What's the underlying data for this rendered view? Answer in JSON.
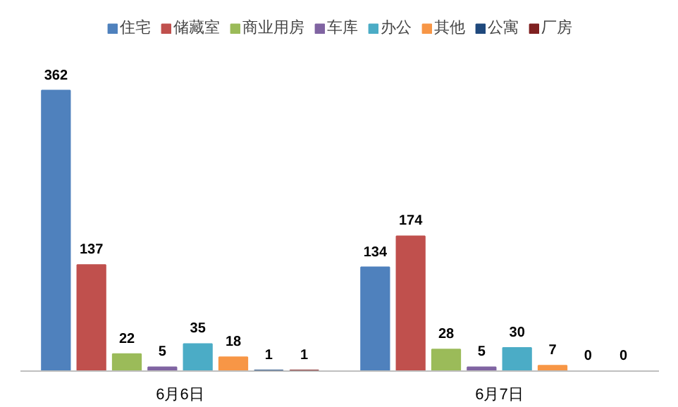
{
  "chart_data": {
    "type": "bar",
    "categories": [
      "6月6日",
      "6月7日"
    ],
    "series": [
      {
        "name": "住宅",
        "color": "#4f81bd",
        "values": [
          362,
          134
        ]
      },
      {
        "name": "储藏室",
        "color": "#c0504d",
        "values": [
          137,
          174
        ]
      },
      {
        "name": "商业用房",
        "color": "#9bbb59",
        "values": [
          22,
          28
        ]
      },
      {
        "name": "车库",
        "color": "#8064a2",
        "values": [
          5,
          5
        ]
      },
      {
        "name": "办公",
        "color": "#4bacc6",
        "values": [
          35,
          30
        ]
      },
      {
        "name": "其他",
        "color": "#f79646",
        "values": [
          18,
          7
        ]
      },
      {
        "name": "公寓",
        "color": "#1f497d",
        "values": [
          1,
          0
        ]
      },
      {
        "name": "厂房",
        "color": "#7f2020",
        "values": [
          1,
          0
        ]
      }
    ],
    "data_labels": true,
    "legend": "top"
  }
}
